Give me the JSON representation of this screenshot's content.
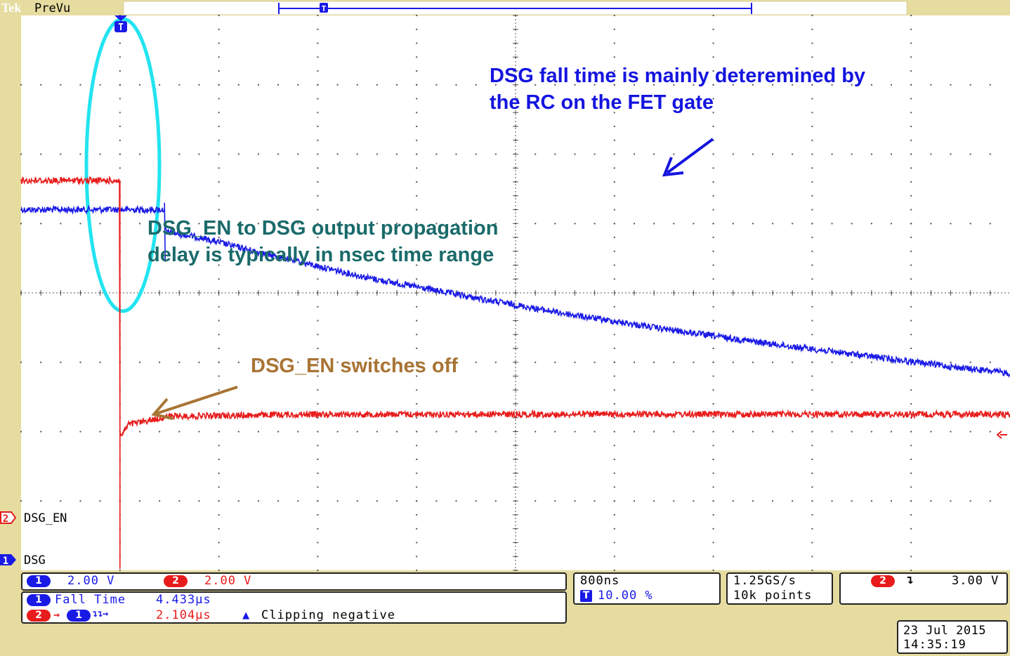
{
  "header": {
    "brand": "Tek",
    "mode": "PreVu"
  },
  "trigger_marker": "T",
  "channels": [
    {
      "num": "1",
      "name": "DSG",
      "color": "#1a1ae6",
      "scale": "2.00 V"
    },
    {
      "num": "2",
      "name": "DSG_EN",
      "color": "#e81c1c",
      "scale": "2.00 V"
    }
  ],
  "annotations": {
    "dsg_fall": [
      "DSG fall time is mainly deteremined by",
      "the RC on the FET gate"
    ],
    "delay": [
      "DSG_EN to DSG output propagation",
      "delay is typically in nsec time range"
    ],
    "switch_off": "DSG_EN switches off"
  },
  "measurements": [
    {
      "label": "Fall Time",
      "value": "4.433µs"
    },
    {
      "label": "",
      "value": "2.104µs"
    }
  ],
  "clipping_note": "Clipping negative",
  "timebase": {
    "scale": "800ns",
    "trigger_position": "10.00 %"
  },
  "acquisition": {
    "rate": "1.25GS/s",
    "record": "10k points"
  },
  "trigger": {
    "source": "2",
    "slope": "falling",
    "level": "3.00 V"
  },
  "datetime": {
    "date": "23 Jul  2015",
    "time": "14:35:19"
  },
  "colors": {
    "frame": "#e6dca0",
    "dsg": "#1a1ae6",
    "dsg_en": "#e81c1c",
    "cursor_ring": "#22e4f0",
    "grid": "#555555"
  },
  "chart_data": {
    "type": "line",
    "title": "",
    "x_divisions": 10,
    "y_divisions": 8,
    "x_scale_per_div": "800ns",
    "series": [
      {
        "name": "DSG",
        "channel": "1",
        "unit": "V",
        "scale_per_div": "2.00 V",
        "x_div": [
          0,
          1.0,
          1.45,
          1.45,
          1.5,
          1.8,
          2.5,
          3.5,
          4.5,
          5.5,
          6.5,
          7.5,
          8.5,
          9.5,
          10.0
        ],
        "y_div": [
          1.2,
          1.2,
          1.2,
          0.9,
          0.87,
          0.8,
          0.55,
          0.22,
          -0.05,
          -0.3,
          -0.52,
          -0.72,
          -0.9,
          -1.08,
          -1.16
        ]
      },
      {
        "name": "DSG_EN",
        "channel": "2",
        "unit": "V",
        "scale_per_div": "2.00 V",
        "x_div": [
          0,
          1.0,
          1.0,
          1.02,
          1.08,
          1.5,
          3.0,
          6.0,
          10.0
        ],
        "y_div": [
          1.62,
          1.62,
          -2.0,
          -2.05,
          -1.9,
          -1.78,
          -1.75,
          -1.75,
          -1.75
        ]
      }
    ]
  }
}
